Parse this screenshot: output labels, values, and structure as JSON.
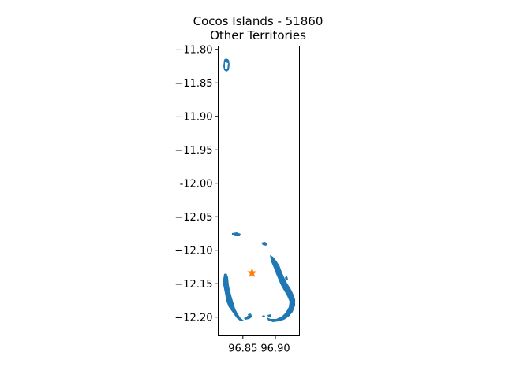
{
  "chart_data": {
    "type": "map",
    "title_line1": "Cocos Islands - 51860",
    "title_line2": "Other Territories",
    "xlabel": "",
    "ylabel": "",
    "xlim": [
      96.812,
      96.937
    ],
    "ylim": [
      -12.228,
      -11.795
    ],
    "xticks": [
      96.85,
      96.9
    ],
    "xtick_labels": [
      "96.85",
      "96.90"
    ],
    "yticks": [
      -11.8,
      -11.85,
      -11.9,
      -11.95,
      -12.0,
      -12.05,
      -12.1,
      -12.15,
      -12.2
    ],
    "ytick_labels": [
      "−11.80",
      "−11.85",
      "−11.90",
      "−11.95",
      "-12.00",
      "−12.05",
      "−12.10",
      "−12.15",
      "−12.20"
    ],
    "land_color": "#1f77b4",
    "marker_color": "#ff7f0e",
    "marker": {
      "shape": "star",
      "lon": 96.864,
      "lat": -12.134
    },
    "grid": false
  }
}
